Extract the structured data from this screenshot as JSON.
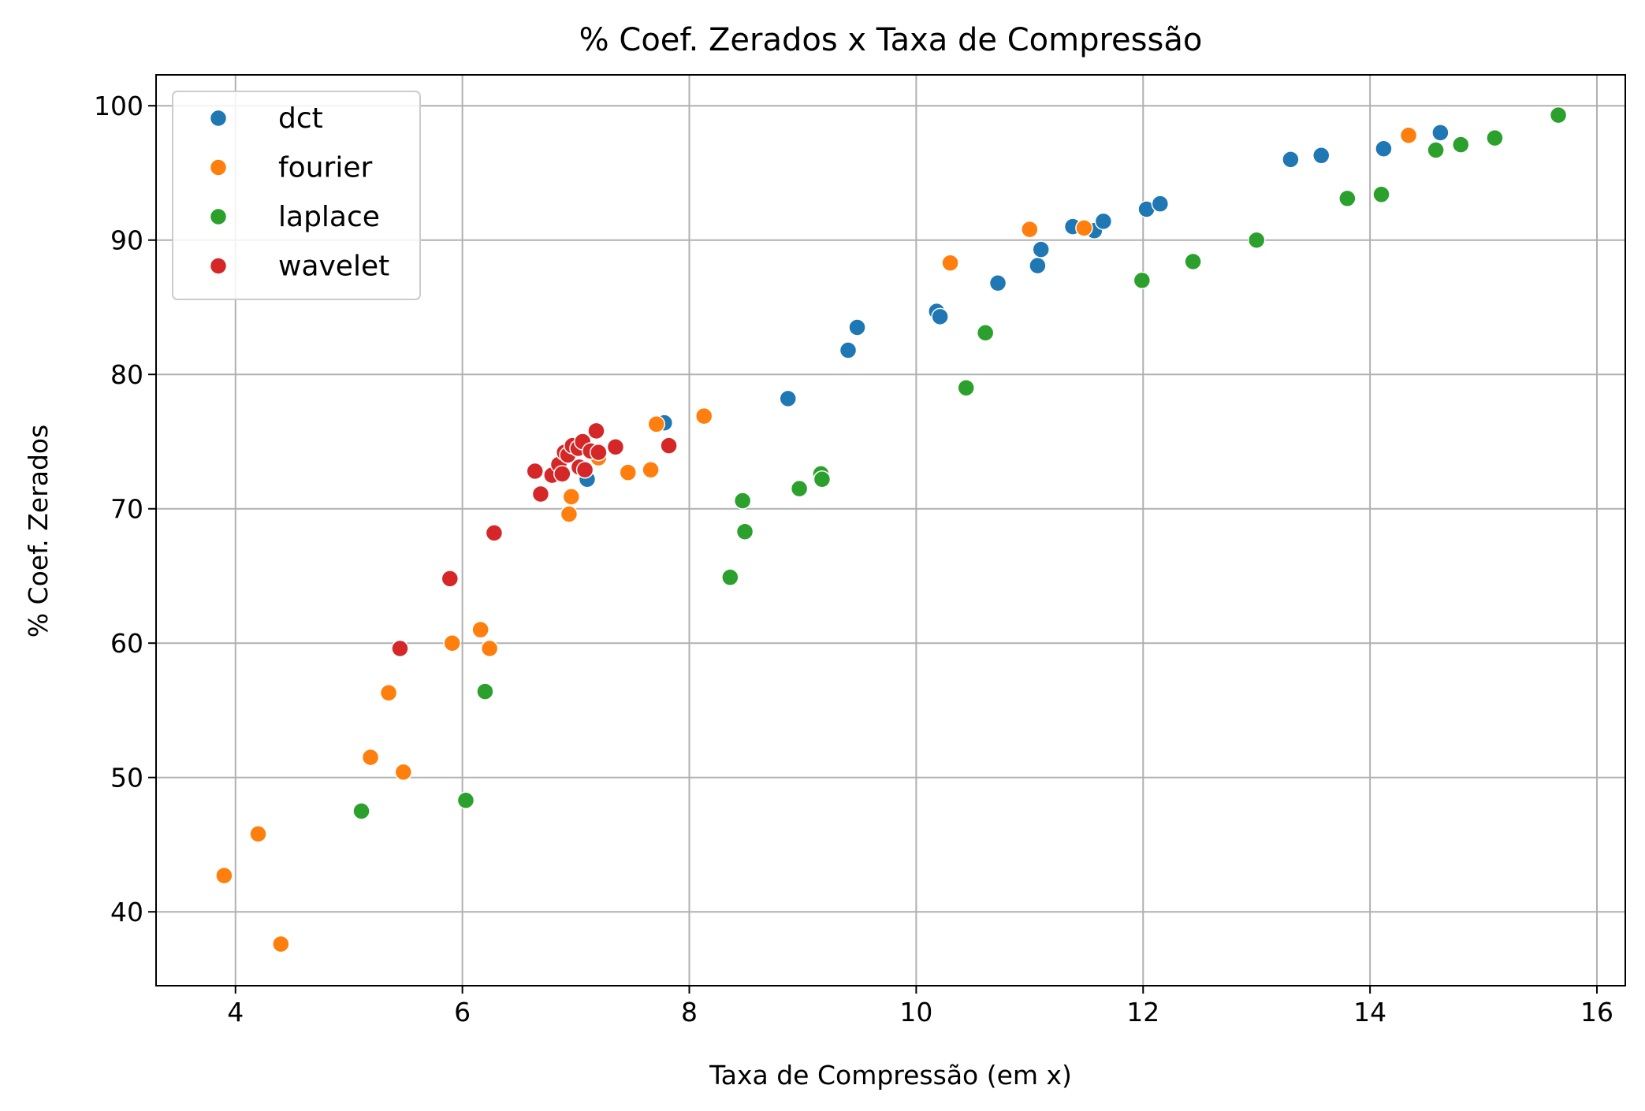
{
  "chart_data": {
    "type": "scatter",
    "title": "% Coef. Zerados x Taxa de Compressão",
    "xlabel": "Taxa de Compressão (em x)",
    "ylabel": "% Coef. Zerados",
    "xlim": [
      3.3,
      16.25
    ],
    "ylim": [
      34.5,
      102.3
    ],
    "xticks": [
      4,
      6,
      8,
      10,
      12,
      14,
      16
    ],
    "yticks": [
      40,
      50,
      60,
      70,
      80,
      90,
      100
    ],
    "grid": true,
    "legend_position": "top-left",
    "series": [
      {
        "name": "dct",
        "color": "#1f77b4",
        "points": [
          [
            7.1,
            72.2
          ],
          [
            7.78,
            76.4
          ],
          [
            8.87,
            78.2
          ],
          [
            9.4,
            81.8
          ],
          [
            9.48,
            83.5
          ],
          [
            10.18,
            84.7
          ],
          [
            10.21,
            84.3
          ],
          [
            10.72,
            86.8
          ],
          [
            11.07,
            88.1
          ],
          [
            11.1,
            89.3
          ],
          [
            11.38,
            91.0
          ],
          [
            11.57,
            90.7
          ],
          [
            11.65,
            91.4
          ],
          [
            12.03,
            92.3
          ],
          [
            12.15,
            92.7
          ],
          [
            13.3,
            96.0
          ],
          [
            13.57,
            96.3
          ],
          [
            14.12,
            96.8
          ],
          [
            14.62,
            98.0
          ]
        ]
      },
      {
        "name": "fourier",
        "color": "#ff7f0e",
        "points": [
          [
            3.9,
            42.7
          ],
          [
            4.2,
            45.8
          ],
          [
            4.4,
            37.6
          ],
          [
            5.19,
            51.5
          ],
          [
            5.35,
            56.3
          ],
          [
            5.48,
            50.4
          ],
          [
            5.91,
            60.0
          ],
          [
            6.16,
            61.0
          ],
          [
            6.24,
            59.6
          ],
          [
            6.94,
            69.6
          ],
          [
            6.96,
            70.9
          ],
          [
            7.2,
            73.8
          ],
          [
            7.46,
            72.7
          ],
          [
            7.66,
            72.9
          ],
          [
            7.71,
            76.3
          ],
          [
            8.13,
            76.9
          ],
          [
            10.3,
            88.3
          ],
          [
            11.0,
            90.8
          ],
          [
            11.48,
            90.9
          ],
          [
            14.34,
            97.8
          ]
        ]
      },
      {
        "name": "laplace",
        "color": "#2ca02c",
        "points": [
          [
            5.11,
            47.5
          ],
          [
            6.03,
            48.3
          ],
          [
            6.2,
            56.4
          ],
          [
            8.36,
            64.9
          ],
          [
            8.47,
            70.6
          ],
          [
            8.49,
            68.3
          ],
          [
            8.97,
            71.5
          ],
          [
            9.16,
            72.6
          ],
          [
            9.17,
            72.2
          ],
          [
            10.44,
            79.0
          ],
          [
            10.61,
            83.1
          ],
          [
            11.99,
            87.0
          ],
          [
            12.44,
            88.4
          ],
          [
            13.0,
            90.0
          ],
          [
            13.8,
            93.1
          ],
          [
            14.1,
            93.4
          ],
          [
            14.58,
            96.7
          ],
          [
            14.8,
            97.1
          ],
          [
            15.1,
            97.6
          ],
          [
            15.66,
            99.3
          ]
        ]
      },
      {
        "name": "wavelet",
        "color": "#d62728",
        "points": [
          [
            5.45,
            59.6
          ],
          [
            5.89,
            64.8
          ],
          [
            6.28,
            68.2
          ],
          [
            6.64,
            72.8
          ],
          [
            6.69,
            71.1
          ],
          [
            6.79,
            72.5
          ],
          [
            6.85,
            73.3
          ],
          [
            6.88,
            72.6
          ],
          [
            6.9,
            74.2
          ],
          [
            6.93,
            74.0
          ],
          [
            6.97,
            74.7
          ],
          [
            7.02,
            74.5
          ],
          [
            7.03,
            73.1
          ],
          [
            7.06,
            75.0
          ],
          [
            7.08,
            72.9
          ],
          [
            7.13,
            74.3
          ],
          [
            7.18,
            75.8
          ],
          [
            7.2,
            74.2
          ],
          [
            7.35,
            74.6
          ],
          [
            7.82,
            74.7
          ]
        ]
      }
    ]
  }
}
